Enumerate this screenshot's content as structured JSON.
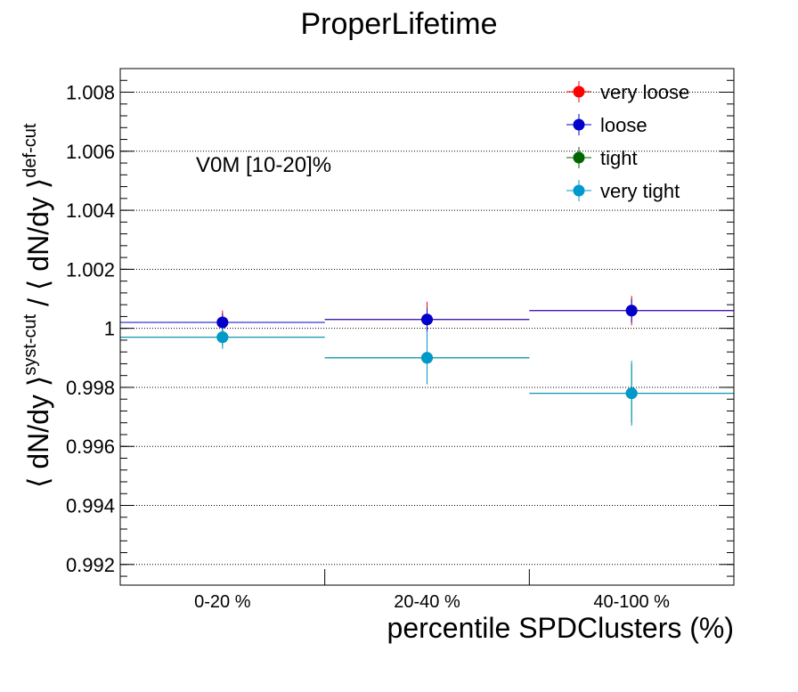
{
  "chart_data": {
    "type": "scatter",
    "title": "ProperLifetime",
    "xlabel": "percentile SPDClusters (%)",
    "ylabel_parts": {
      "main": "⟨ dN/dy ⟩",
      "sup1": "syst-cut",
      "sep": " / ⟨ dN/dy ⟩",
      "sup2": "def-cut"
    },
    "annotation": "V0M [10-20]%",
    "categories": [
      "0-20 %",
      "20-40 %",
      "40-100 %"
    ],
    "ylim": [
      0.9913,
      1.0088
    ],
    "yticks": [
      0.992,
      0.994,
      0.996,
      0.998,
      1.0,
      1.002,
      1.004,
      1.006,
      1.008
    ],
    "ytick_labels": [
      "0.992",
      "0.994",
      "0.996",
      "0.998",
      "1",
      "1.002",
      "1.004",
      "1.006",
      "1.008"
    ],
    "grid": true,
    "legend_position": "top-right",
    "series": [
      {
        "name": "very loose",
        "color": "#ff0000",
        "values": [
          1.0002,
          1.0003,
          1.0006
        ],
        "errors": [
          0.0004,
          0.0006,
          0.0005
        ]
      },
      {
        "name": "loose",
        "color": "#0000cc",
        "values": [
          1.0002,
          1.0003,
          1.0006
        ],
        "errors": [
          0.0003,
          0.0004,
          0.0004
        ]
      },
      {
        "name": "tight",
        "color": "#006600",
        "values": [
          0.9997,
          0.999,
          0.9978
        ],
        "errors": [
          0.0003,
          0.0008,
          0.001
        ]
      },
      {
        "name": "very tight",
        "color": "#0099cc",
        "values": [
          0.9997,
          0.999,
          0.9978
        ],
        "errors": [
          0.0004,
          0.0009,
          0.0011
        ]
      }
    ]
  }
}
